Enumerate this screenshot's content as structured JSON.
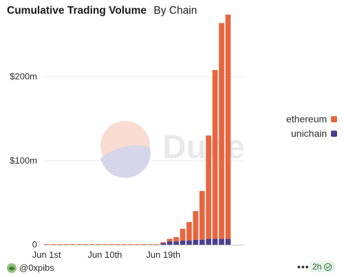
{
  "header": {
    "title": "Cumulative Trading Volume",
    "subtitle": "By Chain"
  },
  "watermark": {
    "text": "Dune"
  },
  "colors": {
    "ethereum": "#e8663f",
    "unichain": "#4b3f8f",
    "grid": "#ebebeb",
    "axis": "#bdbdbd"
  },
  "legend": {
    "items": [
      {
        "label": "ethereum",
        "color": "#e8663f"
      },
      {
        "label": "unichain",
        "color": "#4b3f8f"
      }
    ]
  },
  "footer": {
    "author": "@0xpibs",
    "refresh": "2h",
    "menu": "•••"
  },
  "chart_data": {
    "type": "bar",
    "stacked": true,
    "title": "Cumulative Trading Volume",
    "subtitle": "By Chain",
    "xlabel": "",
    "ylabel": "",
    "ylim": [
      0,
      275
    ],
    "yticks": [
      {
        "value": 0,
        "label": "0"
      },
      {
        "value": 100,
        "label": "$100m"
      },
      {
        "value": 200,
        "label": "$200m"
      }
    ],
    "xticks": [
      {
        "index": 0,
        "label": "Jun 1st"
      },
      {
        "index": 9,
        "label": "Jun 10th"
      },
      {
        "index": 18,
        "label": "Jun 19th"
      }
    ],
    "categories": [
      "Jun 1",
      "Jun 2",
      "Jun 3",
      "Jun 4",
      "Jun 5",
      "Jun 6",
      "Jun 7",
      "Jun 8",
      "Jun 9",
      "Jun 10",
      "Jun 11",
      "Jun 12",
      "Jun 13",
      "Jun 14",
      "Jun 15",
      "Jun 16",
      "Jun 17",
      "Jun 18",
      "Jun 19",
      "Jun 20",
      "Jun 21",
      "Jun 22",
      "Jun 23",
      "Jun 24",
      "Jun 25",
      "Jun 26",
      "Jun 27",
      "Jun 28",
      "Jun 29",
      "Jun 30",
      "Jul 1"
    ],
    "series": [
      {
        "name": "ethereum",
        "values": [
          0.1,
          0.1,
          0.1,
          0.1,
          0.1,
          0.1,
          0.1,
          0.1,
          0.1,
          0.1,
          0.1,
          0.1,
          0.1,
          0.1,
          0.1,
          0.1,
          0.1,
          0.3,
          1,
          3,
          5,
          14,
          22,
          34,
          58,
          123,
          201,
          257,
          267,
          0,
          0
        ]
      },
      {
        "name": "unichain",
        "values": [
          0,
          0,
          0,
          0,
          0,
          0,
          0,
          0,
          0,
          0,
          0,
          0,
          0,
          0,
          0,
          0,
          0,
          0,
          2,
          4,
          4,
          5,
          5,
          6,
          6,
          7,
          7,
          7,
          7,
          0,
          0
        ]
      }
    ]
  }
}
